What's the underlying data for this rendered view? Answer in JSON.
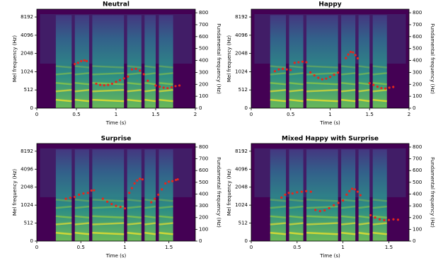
{
  "chart_data": [
    {
      "type": "scatter",
      "title": "Neutral",
      "xlabel": "Time (s)",
      "ylabel": "Mel frequency (Hz)",
      "y2label": "Fundamental frequency (Hz)",
      "xlim": [
        0,
        2
      ],
      "xticks": [
        0,
        0.5,
        1,
        1.5,
        2
      ],
      "ylim": [
        0,
        11025
      ],
      "yscale": "symlog",
      "y_linthresh": 512,
      "yticks": [
        0,
        512,
        1024,
        2048,
        4096,
        8192
      ],
      "y2lim": [
        0,
        830
      ],
      "y2ticks": [
        0,
        100,
        200,
        300,
        400,
        500,
        600,
        700,
        800
      ],
      "series": [
        {
          "color": "#e8251c",
          "axis": "y2",
          "x": [
            0.48,
            0.52,
            0.56,
            0.6,
            0.63,
            0.75,
            0.8,
            0.85,
            0.9,
            0.95,
            1.0,
            1.05,
            1.1,
            1.15,
            1.2,
            1.25,
            1.3,
            1.35,
            1.4,
            1.5,
            1.55,
            1.6,
            1.65,
            1.7,
            1.75,
            1.8
          ],
          "values": [
            370,
            380,
            395,
            400,
            395,
            205,
            195,
            192,
            195,
            205,
            220,
            235,
            250,
            265,
            325,
            330,
            315,
            285,
            230,
            190,
            180,
            172,
            168,
            175,
            185,
            190
          ]
        }
      ]
    },
    {
      "type": "scatter",
      "title": "Happy",
      "xlabel": "Time (s)",
      "ylabel": "Mel frequency (Hz)",
      "y2label": "Fundamental frequency (Hz)",
      "xlim": [
        0,
        2
      ],
      "xticks": [
        0,
        0.5,
        1,
        1.5,
        2
      ],
      "ylim": [
        0,
        11025
      ],
      "yscale": "symlog",
      "y_linthresh": 512,
      "yticks": [
        0,
        512,
        1024,
        2048,
        4096,
        8192
      ],
      "y2lim": [
        0,
        830
      ],
      "y2ticks": [
        0,
        100,
        200,
        300,
        400,
        500,
        600,
        700,
        800
      ],
      "series": [
        {
          "color": "#e8251c",
          "axis": "y2",
          "x": [
            0.3,
            0.35,
            0.4,
            0.45,
            0.5,
            0.55,
            0.6,
            0.65,
            0.7,
            0.75,
            0.8,
            0.85,
            0.9,
            0.95,
            1.0,
            1.05,
            1.1,
            1.2,
            1.23,
            1.26,
            1.29,
            1.32,
            1.35,
            1.5,
            1.55,
            1.6,
            1.65,
            1.7,
            1.75,
            1.8
          ],
          "values": [
            310,
            325,
            330,
            325,
            320,
            380,
            385,
            390,
            385,
            300,
            275,
            255,
            242,
            248,
            262,
            280,
            298,
            420,
            450,
            472,
            468,
            445,
            418,
            210,
            195,
            180,
            168,
            165,
            172,
            178
          ]
        }
      ]
    },
    {
      "type": "scatter",
      "title": "Surprise",
      "xlabel": "Time (s)",
      "ylabel": "Mel frequency (Hz)",
      "y2label": "Fundamental frequency (Hz)",
      "xlim": [
        0,
        1.8
      ],
      "xticks": [
        0,
        0.5,
        1,
        1.5
      ],
      "ylim": [
        0,
        11025
      ],
      "yscale": "symlog",
      "y_linthresh": 512,
      "yticks": [
        0,
        512,
        1024,
        2048,
        4096,
        8192
      ],
      "y2lim": [
        0,
        830
      ],
      "y2ticks": [
        0,
        100,
        200,
        300,
        400,
        500,
        600,
        700,
        800
      ],
      "series": [
        {
          "color": "#e8251c",
          "axis": "y2",
          "x": [
            0.33,
            0.38,
            0.43,
            0.48,
            0.53,
            0.58,
            0.62,
            0.65,
            0.75,
            0.8,
            0.85,
            0.9,
            0.95,
            1.0,
            1.05,
            1.08,
            1.11,
            1.14,
            1.17,
            1.2,
            1.3,
            1.34,
            1.38,
            1.42,
            1.46,
            1.5,
            1.54,
            1.58,
            1.6
          ],
          "values": [
            360,
            368,
            375,
            395,
            405,
            410,
            430,
            432,
            360,
            335,
            315,
            300,
            290,
            278,
            410,
            450,
            490,
            515,
            530,
            525,
            330,
            360,
            395,
            440,
            490,
            505,
            510,
            520,
            525
          ]
        }
      ]
    },
    {
      "type": "scatter",
      "title": "Mixed Happy with Surprise",
      "xlabel": "Time (s)",
      "ylabel": "Mel frequency (Hz)",
      "y2label": "Fundamental frequency (Hz)",
      "xlim": [
        0,
        1.72
      ],
      "xticks": [
        0,
        0.5,
        1,
        1.5
      ],
      "ylim": [
        0,
        11025
      ],
      "yscale": "symlog",
      "y_linthresh": 512,
      "yticks": [
        0,
        512,
        1024,
        2048,
        4096,
        8192
      ],
      "y2lim": [
        0,
        830
      ],
      "y2ticks": [
        0,
        100,
        200,
        300,
        400,
        500,
        600,
        700,
        800
      ],
      "series": [
        {
          "color": "#e8251c",
          "axis": "y2",
          "x": [
            0.33,
            0.37,
            0.41,
            0.45,
            0.5,
            0.55,
            0.6,
            0.65,
            0.7,
            0.75,
            0.8,
            0.85,
            0.9,
            0.95,
            1.0,
            1.04,
            1.07,
            1.1,
            1.13,
            1.16,
            1.19,
            1.3,
            1.35,
            1.4,
            1.45,
            1.5,
            1.55,
            1.6
          ],
          "values": [
            370,
            395,
            410,
            405,
            415,
            420,
            425,
            420,
            265,
            255,
            262,
            280,
            305,
            325,
            345,
            395,
            425,
            445,
            440,
            420,
            390,
            220,
            200,
            185,
            178,
            180,
            185,
            182
          ]
        }
      ]
    }
  ]
}
